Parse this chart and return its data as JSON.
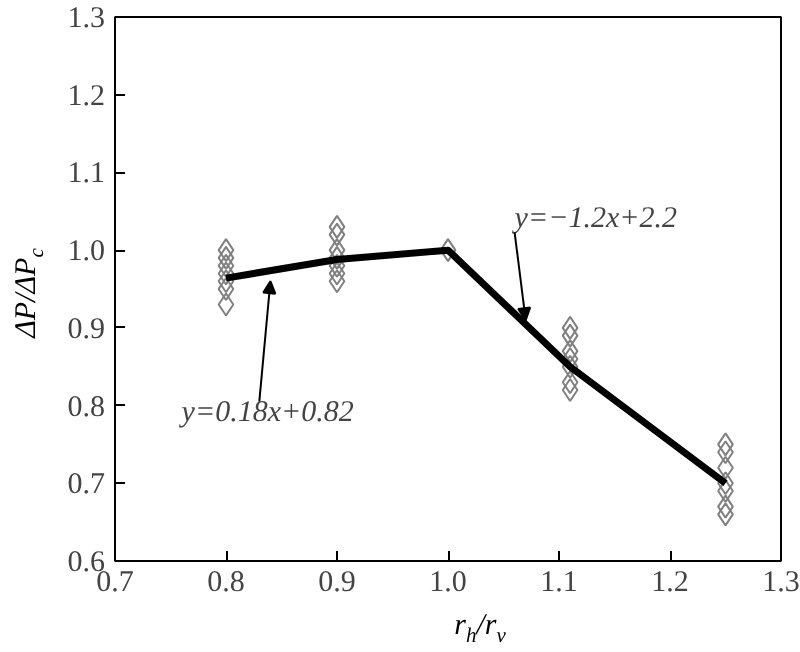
{
  "chart_data": {
    "type": "scatter",
    "xlabel": "r$_{h}$/r$_{v}$",
    "ylabel": "ΔP/ΔP$_{c}$",
    "xlim": [
      0.7,
      1.3
    ],
    "xticks": [
      {
        "value": 0.7,
        "label": "0.7"
      },
      {
        "value": 0.8,
        "label": "0.8"
      },
      {
        "value": 0.9,
        "label": "0.9"
      },
      {
        "value": 1.0,
        "label": "1.0"
      },
      {
        "value": 1.1,
        "label": "1.1"
      },
      {
        "value": 1.2,
        "label": "1.2"
      },
      {
        "value": 1.3,
        "label": "1.3"
      }
    ],
    "ylim": [
      0.6,
      1.3
    ],
    "yticks": [
      {
        "value": 0.6,
        "label": "0.6"
      },
      {
        "value": 0.7,
        "label": "0.7"
      },
      {
        "value": 0.8,
        "label": "0.8"
      },
      {
        "value": 0.9,
        "label": "0.9"
      },
      {
        "value": 1.0,
        "label": "1.0"
      },
      {
        "value": 1.1,
        "label": "1.1"
      },
      {
        "value": 1.2,
        "label": "1.2"
      },
      {
        "value": 1.3,
        "label": "1.3"
      }
    ],
    "grid": false,
    "marker": "diamond",
    "series": [
      {
        "color": "#808080",
        "x": [
          0.8,
          0.8,
          0.8,
          0.8,
          0.8,
          0.8,
          0.8,
          0.9,
          0.9,
          0.9,
          0.9,
          0.9,
          0.9,
          0.9,
          1.0,
          1.11,
          1.11,
          1.11,
          1.11,
          1.11,
          1.11,
          1.11,
          1.25,
          1.25,
          1.25,
          1.25,
          1.25,
          1.25,
          1.25
        ],
        "values": [
          1.0,
          0.99,
          0.98,
          0.97,
          0.96,
          0.95,
          0.93,
          1.03,
          1.02,
          1.0,
          0.99,
          0.98,
          0.97,
          0.96,
          1.0,
          0.9,
          0.89,
          0.87,
          0.86,
          0.85,
          0.83,
          0.82,
          0.75,
          0.74,
          0.72,
          0.7,
          0.69,
          0.67,
          0.66
        ]
      },
      {
        "type": "line",
        "color": "#000000",
        "marker": "none",
        "line_style": "solid",
        "x": [
          0.8,
          0.9,
          1.0,
          1.11,
          1.25
        ],
        "values": [
          0.964,
          0.988,
          1.0,
          0.85,
          0.7
        ]
      }
    ],
    "annotations": [
      {
        "text": "y=0.18x+0.82",
        "x": 0.84,
        "y": 0.96
      },
      {
        "text": "y=−1.2x+2.2",
        "x": 1.07,
        "y": 0.91
      }
    ]
  }
}
